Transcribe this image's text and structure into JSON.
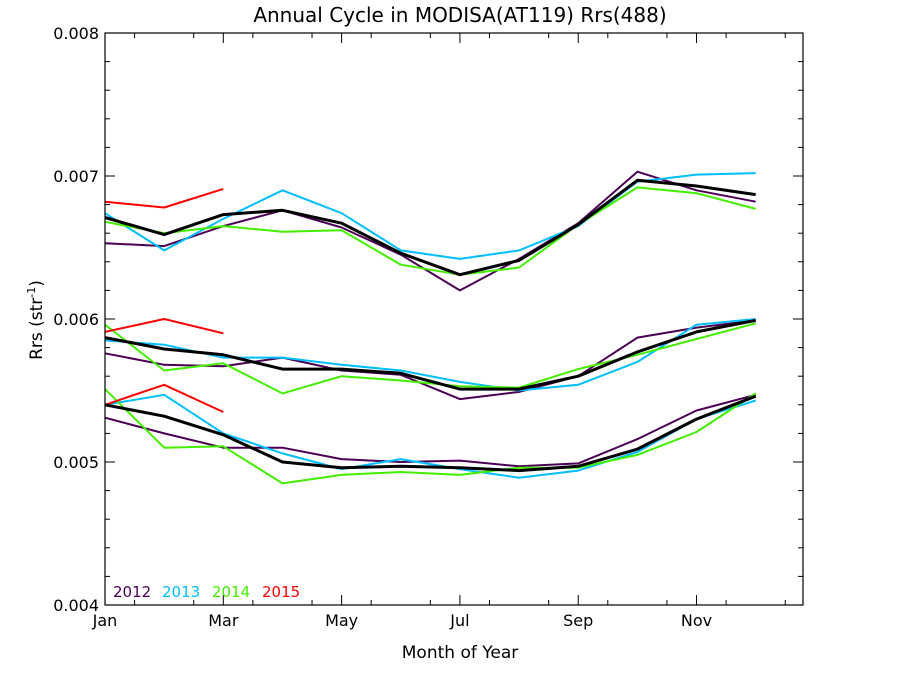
{
  "chart_data": {
    "type": "line",
    "title": "Annual Cycle in MODISA(AT119) Rrs(488)",
    "xlabel": "Month of Year",
    "ylabel_main": "Rrs (str",
    "ylabel_sup": "-1",
    "ylabel_close": ")",
    "xlim": [
      0.5,
      12.3
    ],
    "ylim": [
      0.004,
      0.008
    ],
    "x_ticks": [
      {
        "value": 0.5,
        "label": "Jan"
      },
      {
        "value": 2.5,
        "label": "Mar"
      },
      {
        "value": 4.5,
        "label": "May"
      },
      {
        "value": 6.5,
        "label": "Jul"
      },
      {
        "value": 8.5,
        "label": "Sep"
      },
      {
        "value": 10.5,
        "label": "Nov"
      }
    ],
    "y_ticks": [
      {
        "value": 0.004,
        "label": "0.004"
      },
      {
        "value": 0.005,
        "label": "0.005"
      },
      {
        "value": 0.006,
        "label": "0.006"
      },
      {
        "value": 0.007,
        "label": "0.007"
      },
      {
        "value": 0.008,
        "label": "0.008"
      }
    ],
    "legend": [
      {
        "label": "2012",
        "color": "#4b0055"
      },
      {
        "label": "2013",
        "color": "#00bfff"
      },
      {
        "label": "2014",
        "color": "#44ee00"
      },
      {
        "label": "2015",
        "color": "#ff0000"
      }
    ],
    "groups": [
      {
        "series": [
          {
            "name": "2012",
            "color": "#4b0055",
            "width": 2,
            "x": [
              0.5,
              1.5,
              2.5,
              3.5,
              4.5,
              5.5,
              6.5,
              7.5,
              8.5,
              9.5,
              10.5,
              11.5
            ],
            "y": [
              0.00653,
              0.00651,
              0.00665,
              0.00676,
              0.00664,
              0.00645,
              0.0062,
              0.00642,
              0.00667,
              0.00703,
              0.0069,
              0.00682
            ]
          },
          {
            "name": "2013",
            "color": "#00bfff",
            "width": 2,
            "x": [
              0.5,
              1.5,
              2.5,
              3.5,
              4.5,
              5.5,
              6.5,
              7.5,
              8.5,
              9.5,
              10.5,
              11.5
            ],
            "y": [
              0.00674,
              0.00648,
              0.0067,
              0.0069,
              0.00674,
              0.00648,
              0.00642,
              0.00648,
              0.00665,
              0.00696,
              0.00701,
              0.00702
            ]
          },
          {
            "name": "2014",
            "color": "#44ee00",
            "width": 2,
            "x": [
              0.5,
              1.5,
              2.5,
              3.5,
              4.5,
              5.5,
              6.5,
              7.5,
              8.5,
              9.5,
              10.5,
              11.5
            ],
            "y": [
              0.00668,
              0.0066,
              0.00665,
              0.00661,
              0.00662,
              0.00638,
              0.00631,
              0.00636,
              0.00666,
              0.00692,
              0.00688,
              0.00677
            ]
          },
          {
            "name": "2015",
            "color": "#ff0000",
            "width": 2,
            "x": [
              0.5,
              1.5,
              2.5
            ],
            "y": [
              0.00682,
              0.00678,
              0.00691
            ]
          },
          {
            "name": "",
            "color": "#000000",
            "width": 3,
            "x": [
              0.5,
              1.5,
              2.5,
              3.5,
              4.5,
              5.5,
              6.5,
              7.5,
              8.5,
              9.5,
              10.5,
              11.5
            ],
            "y": [
              0.00671,
              0.00659,
              0.00673,
              0.00676,
              0.00667,
              0.00646,
              0.00631,
              0.00641,
              0.00666,
              0.00697,
              0.00693,
              0.00687
            ]
          }
        ]
      },
      {
        "series": [
          {
            "name": "2012",
            "color": "#4b0055",
            "width": 2,
            "x": [
              0.5,
              1.5,
              2.5,
              3.5,
              4.5,
              5.5,
              6.5,
              7.5,
              8.5,
              9.5,
              10.5,
              11.5
            ],
            "y": [
              0.00576,
              0.00568,
              0.00567,
              0.00573,
              0.00564,
              0.00561,
              0.00544,
              0.00549,
              0.0056,
              0.00587,
              0.00594,
              0.00599
            ]
          },
          {
            "name": "2013",
            "color": "#00bfff",
            "width": 2,
            "x": [
              0.5,
              1.5,
              2.5,
              3.5,
              4.5,
              5.5,
              6.5,
              7.5,
              8.5,
              9.5,
              10.5,
              11.5
            ],
            "y": [
              0.00585,
              0.00582,
              0.00573,
              0.00573,
              0.00568,
              0.00564,
              0.00556,
              0.0055,
              0.00554,
              0.0057,
              0.00596,
              0.006
            ]
          },
          {
            "name": "2014",
            "color": "#44ee00",
            "width": 2,
            "x": [
              0.5,
              1.5,
              2.5,
              3.5,
              4.5,
              5.5,
              6.5,
              7.5,
              8.5,
              9.5,
              10.5,
              11.5
            ],
            "y": [
              0.00596,
              0.00564,
              0.00569,
              0.00548,
              0.0056,
              0.00557,
              0.00553,
              0.00552,
              0.00565,
              0.00575,
              0.00586,
              0.00597
            ]
          },
          {
            "name": "2015",
            "color": "#ff0000",
            "width": 2,
            "x": [
              0.5,
              1.5,
              2.5
            ],
            "y": [
              0.00591,
              0.006,
              0.0059
            ]
          },
          {
            "name": "",
            "color": "#000000",
            "width": 3,
            "x": [
              0.5,
              1.5,
              2.5,
              3.5,
              4.5,
              5.5,
              6.5,
              7.5,
              8.5,
              9.5,
              10.5,
              11.5
            ],
            "y": [
              0.00587,
              0.00579,
              0.00575,
              0.00565,
              0.00565,
              0.00562,
              0.00551,
              0.00551,
              0.0056,
              0.00577,
              0.00591,
              0.00599
            ]
          }
        ]
      },
      {
        "series": [
          {
            "name": "2012",
            "color": "#4b0055",
            "width": 2,
            "x": [
              0.5,
              1.5,
              2.5,
              3.5,
              4.5,
              5.5,
              6.5,
              7.5,
              8.5,
              9.5,
              10.5,
              11.5
            ],
            "y": [
              0.00531,
              0.0052,
              0.0051,
              0.0051,
              0.00502,
              0.005,
              0.00501,
              0.00497,
              0.00499,
              0.00516,
              0.00536,
              0.00547
            ]
          },
          {
            "name": "2013",
            "color": "#00bfff",
            "width": 2,
            "x": [
              0.5,
              1.5,
              2.5,
              3.5,
              4.5,
              5.5,
              6.5,
              7.5,
              8.5,
              9.5,
              10.5,
              11.5
            ],
            "y": [
              0.0054,
              0.00547,
              0.0052,
              0.00506,
              0.00495,
              0.00502,
              0.00495,
              0.00489,
              0.00494,
              0.00507,
              0.0053,
              0.00543
            ]
          },
          {
            "name": "2014",
            "color": "#44ee00",
            "width": 2,
            "x": [
              0.5,
              1.5,
              2.5,
              3.5,
              4.5,
              5.5,
              6.5,
              7.5,
              8.5,
              9.5,
              10.5,
              11.5
            ],
            "y": [
              0.00551,
              0.0051,
              0.00511,
              0.00485,
              0.00491,
              0.00493,
              0.00491,
              0.00496,
              0.00496,
              0.00505,
              0.00521,
              0.00548
            ]
          },
          {
            "name": "2015",
            "color": "#ff0000",
            "width": 2,
            "x": [
              0.5,
              1.5,
              2.5
            ],
            "y": [
              0.0054,
              0.00554,
              0.00535
            ]
          },
          {
            "name": "",
            "color": "#000000",
            "width": 3,
            "x": [
              0.5,
              1.5,
              2.5,
              3.5,
              4.5,
              5.5,
              6.5,
              7.5,
              8.5,
              9.5,
              10.5,
              11.5
            ],
            "y": [
              0.0054,
              0.00532,
              0.00519,
              0.005,
              0.00496,
              0.00497,
              0.00496,
              0.00494,
              0.00497,
              0.00509,
              0.0053,
              0.00546
            ]
          }
        ]
      }
    ]
  }
}
